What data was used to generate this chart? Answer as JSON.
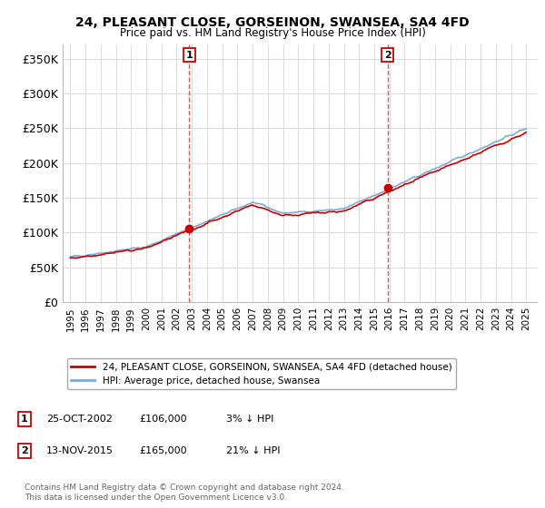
{
  "title1": "24, PLEASANT CLOSE, GORSEINON, SWANSEA, SA4 4FD",
  "title2": "Price paid vs. HM Land Registry's House Price Index (HPI)",
  "ylim": [
    0,
    370000
  ],
  "yticks": [
    0,
    50000,
    100000,
    150000,
    200000,
    250000,
    300000,
    350000
  ],
  "ytick_labels": [
    "£0",
    "£50K",
    "£100K",
    "£150K",
    "£200K",
    "£250K",
    "£300K",
    "£350K"
  ],
  "sale1_date": 2002.82,
  "sale1_price": 106000,
  "sale1_label": "1",
  "sale1_text_date": "25-OCT-2002",
  "sale1_text_price": "£106,000",
  "sale1_text_hpi": "3% ↓ HPI",
  "sale2_date": 2015.87,
  "sale2_price": 165000,
  "sale2_label": "2",
  "sale2_text_date": "13-NOV-2015",
  "sale2_text_price": "£165,000",
  "sale2_text_hpi": "21% ↓ HPI",
  "line_red_label": "24, PLEASANT CLOSE, GORSEINON, SWANSEA, SA4 4FD (detached house)",
  "line_blue_label": "HPI: Average price, detached house, Swansea",
  "footnote_line1": "Contains HM Land Registry data © Crown copyright and database right 2024.",
  "footnote_line2": "This data is licensed under the Open Government Licence v3.0.",
  "red_color": "#cc0000",
  "blue_color": "#7aadd4",
  "vline_color": "#cc0000",
  "grid_color": "#dddddd",
  "background_color": "#ffffff"
}
